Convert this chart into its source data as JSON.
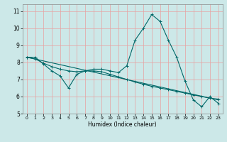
{
  "title": "",
  "xlabel": "Humidex (Indice chaleur)",
  "ylabel": "",
  "background_color": "#cce8e8",
  "grid_color_v": "#e8a0a0",
  "grid_color_h": "#e8a0a0",
  "line_color": "#006868",
  "xlim": [
    -0.5,
    23.5
  ],
  "ylim": [
    5,
    11.4
  ],
  "yticks": [
    5,
    6,
    7,
    8,
    9,
    10,
    11
  ],
  "xticks": [
    0,
    1,
    2,
    3,
    4,
    5,
    6,
    7,
    8,
    9,
    10,
    11,
    12,
    13,
    14,
    15,
    16,
    17,
    18,
    19,
    20,
    21,
    22,
    23
  ],
  "line1_x": [
    0,
    1,
    2,
    3,
    4,
    5,
    6,
    7,
    8,
    9,
    10,
    11,
    12,
    13,
    14,
    15,
    16,
    17,
    18,
    19,
    20,
    21,
    22,
    23
  ],
  "line1_y": [
    8.3,
    8.3,
    7.9,
    7.5,
    7.2,
    6.5,
    7.3,
    7.5,
    7.6,
    7.6,
    7.5,
    7.4,
    7.8,
    9.3,
    10.0,
    10.8,
    10.4,
    9.3,
    8.3,
    6.9,
    5.8,
    5.4,
    6.0,
    5.6
  ],
  "line2_x": [
    0,
    1,
    2,
    3,
    4,
    5,
    6,
    7,
    8,
    9,
    10,
    11,
    12,
    13,
    14,
    15,
    16,
    17,
    18,
    19,
    20,
    21,
    22,
    23
  ],
  "line2_y": [
    8.3,
    8.2,
    7.95,
    7.75,
    7.6,
    7.5,
    7.45,
    7.5,
    7.5,
    7.45,
    7.3,
    7.15,
    7.0,
    6.85,
    6.72,
    6.6,
    6.5,
    6.4,
    6.3,
    6.2,
    6.1,
    6.0,
    5.9,
    5.85
  ],
  "line3_x": [
    0,
    23
  ],
  "line3_y": [
    8.3,
    5.8
  ]
}
